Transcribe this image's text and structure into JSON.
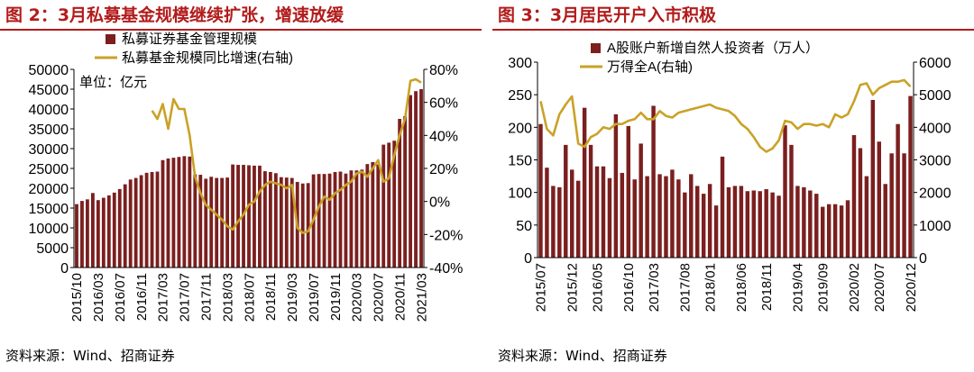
{
  "fig1": {
    "title": "图 2：3月私募基金规模继续扩张，增速放缓",
    "source": "资料来源：Wind、招商证券",
    "chart_data": {
      "type": "bar+line",
      "x_ticks": [
        "2015/10",
        "2016/03",
        "2016/07",
        "2016/11",
        "2017/03",
        "2017/07",
        "2017/11",
        "2018/03",
        "2018/07",
        "2018/11",
        "2019/03",
        "2019/07",
        "2019/11",
        "2020/03",
        "2020/07",
        "2020/11",
        "2021/03"
      ],
      "annotation": "单位：亿元",
      "ylim_left": [
        0,
        50000
      ],
      "yticks_left": [
        0,
        5000,
        10000,
        15000,
        20000,
        25000,
        30000,
        35000,
        40000,
        45000,
        50000
      ],
      "ylim_right": [
        -40,
        80
      ],
      "yticks_right": [
        -40,
        -20,
        0,
        20,
        40,
        60,
        80
      ],
      "yticks_right_labels": [
        "-40%",
        "-20%",
        "0%",
        "20%",
        "40%",
        "60%",
        "80%"
      ],
      "legend": [
        "私募证券基金管理规模",
        "私募基金规模同比增速(右轴)"
      ],
      "bar_color": "#7b1f1f",
      "line_color": "#c9a227",
      "bars": [
        16000,
        16800,
        17200,
        18800,
        17000,
        17600,
        18200,
        18900,
        19800,
        21000,
        22200,
        22600,
        23300,
        23900,
        24100,
        24200,
        27100,
        27500,
        27700,
        27900,
        28100,
        28000,
        23500,
        23400,
        22400,
        22900,
        22600,
        22600,
        22700,
        26000,
        25900,
        25900,
        25800,
        25700,
        25700,
        24300,
        24100,
        23800,
        22800,
        22700,
        22600,
        21600,
        21200,
        21300,
        23500,
        23600,
        23600,
        23700,
        24100,
        24200,
        23700,
        24500,
        24500,
        24700,
        26100,
        26600,
        26000,
        31000,
        31500,
        32000,
        37500,
        38200,
        43500,
        44500,
        45000
      ],
      "line": [
        null,
        null,
        null,
        null,
        null,
        null,
        null,
        null,
        null,
        null,
        null,
        null,
        null,
        null,
        55,
        50,
        59,
        44,
        62,
        56,
        56,
        40,
        15,
        5,
        -2,
        -5,
        -8,
        -11,
        -15,
        -17,
        -12,
        -8,
        -2,
        0,
        6,
        10,
        12,
        11,
        10,
        8,
        10,
        -16,
        -19,
        -18,
        -11,
        -3,
        3,
        1,
        5,
        7,
        10,
        12,
        17,
        18,
        15,
        20,
        25,
        12,
        14,
        28,
        40,
        50,
        73,
        74,
        72
      ]
    }
  },
  "fig2": {
    "title": "图 3：3月居民开户入市积极",
    "source": "资料来源：Wind、招商证券",
    "chart_data": {
      "type": "bar+line",
      "x_ticks": [
        "2015/07",
        "2015/12",
        "2016/05",
        "2016/10",
        "2017/03",
        "2017/08",
        "2018/01",
        "2018/06",
        "2018/11",
        "2019/04",
        "2019/09",
        "2020/02",
        "2020/07",
        "2020/12"
      ],
      "ylim_left": [
        0,
        300
      ],
      "yticks_left": [
        0,
        50,
        100,
        150,
        200,
        250,
        300
      ],
      "ylim_right": [
        0,
        6000
      ],
      "yticks_right": [
        0,
        1000,
        2000,
        3000,
        4000,
        5000,
        6000
      ],
      "legend": [
        "A股账户新增自然人投资者（万人）",
        "万得全A(右轴)"
      ],
      "bar_color": "#7b1f1f",
      "line_color": "#c9a227",
      "bars": [
        205,
        138,
        110,
        108,
        173,
        135,
        118,
        230,
        173,
        140,
        140,
        122,
        220,
        130,
        202,
        120,
        175,
        125,
        233,
        128,
        125,
        135,
        120,
        100,
        128,
        110,
        98,
        113,
        80,
        155,
        108,
        110,
        110,
        102,
        103,
        102,
        105,
        100,
        95,
        203,
        173,
        110,
        108,
        103,
        98,
        78,
        82,
        82,
        80,
        88,
        188,
        168,
        125,
        242,
        178,
        113,
        160,
        205,
        160,
        248
      ],
      "line": [
        4800,
        3950,
        3750,
        4400,
        4700,
        4950,
        3500,
        3400,
        3700,
        3800,
        4000,
        3950,
        4100,
        4100,
        4200,
        4250,
        4450,
        4250,
        4250,
        4500,
        4350,
        4300,
        4450,
        4500,
        4550,
        4600,
        4650,
        4700,
        4600,
        4550,
        4500,
        4350,
        4100,
        3950,
        3700,
        3400,
        3250,
        3350,
        3600,
        4200,
        4150,
        3950,
        4100,
        4100,
        4050,
        4100,
        4000,
        4400,
        4300,
        4400,
        4800,
        5300,
        5350,
        5000,
        5200,
        5300,
        5400,
        5400,
        5450,
        5250
      ]
    }
  }
}
